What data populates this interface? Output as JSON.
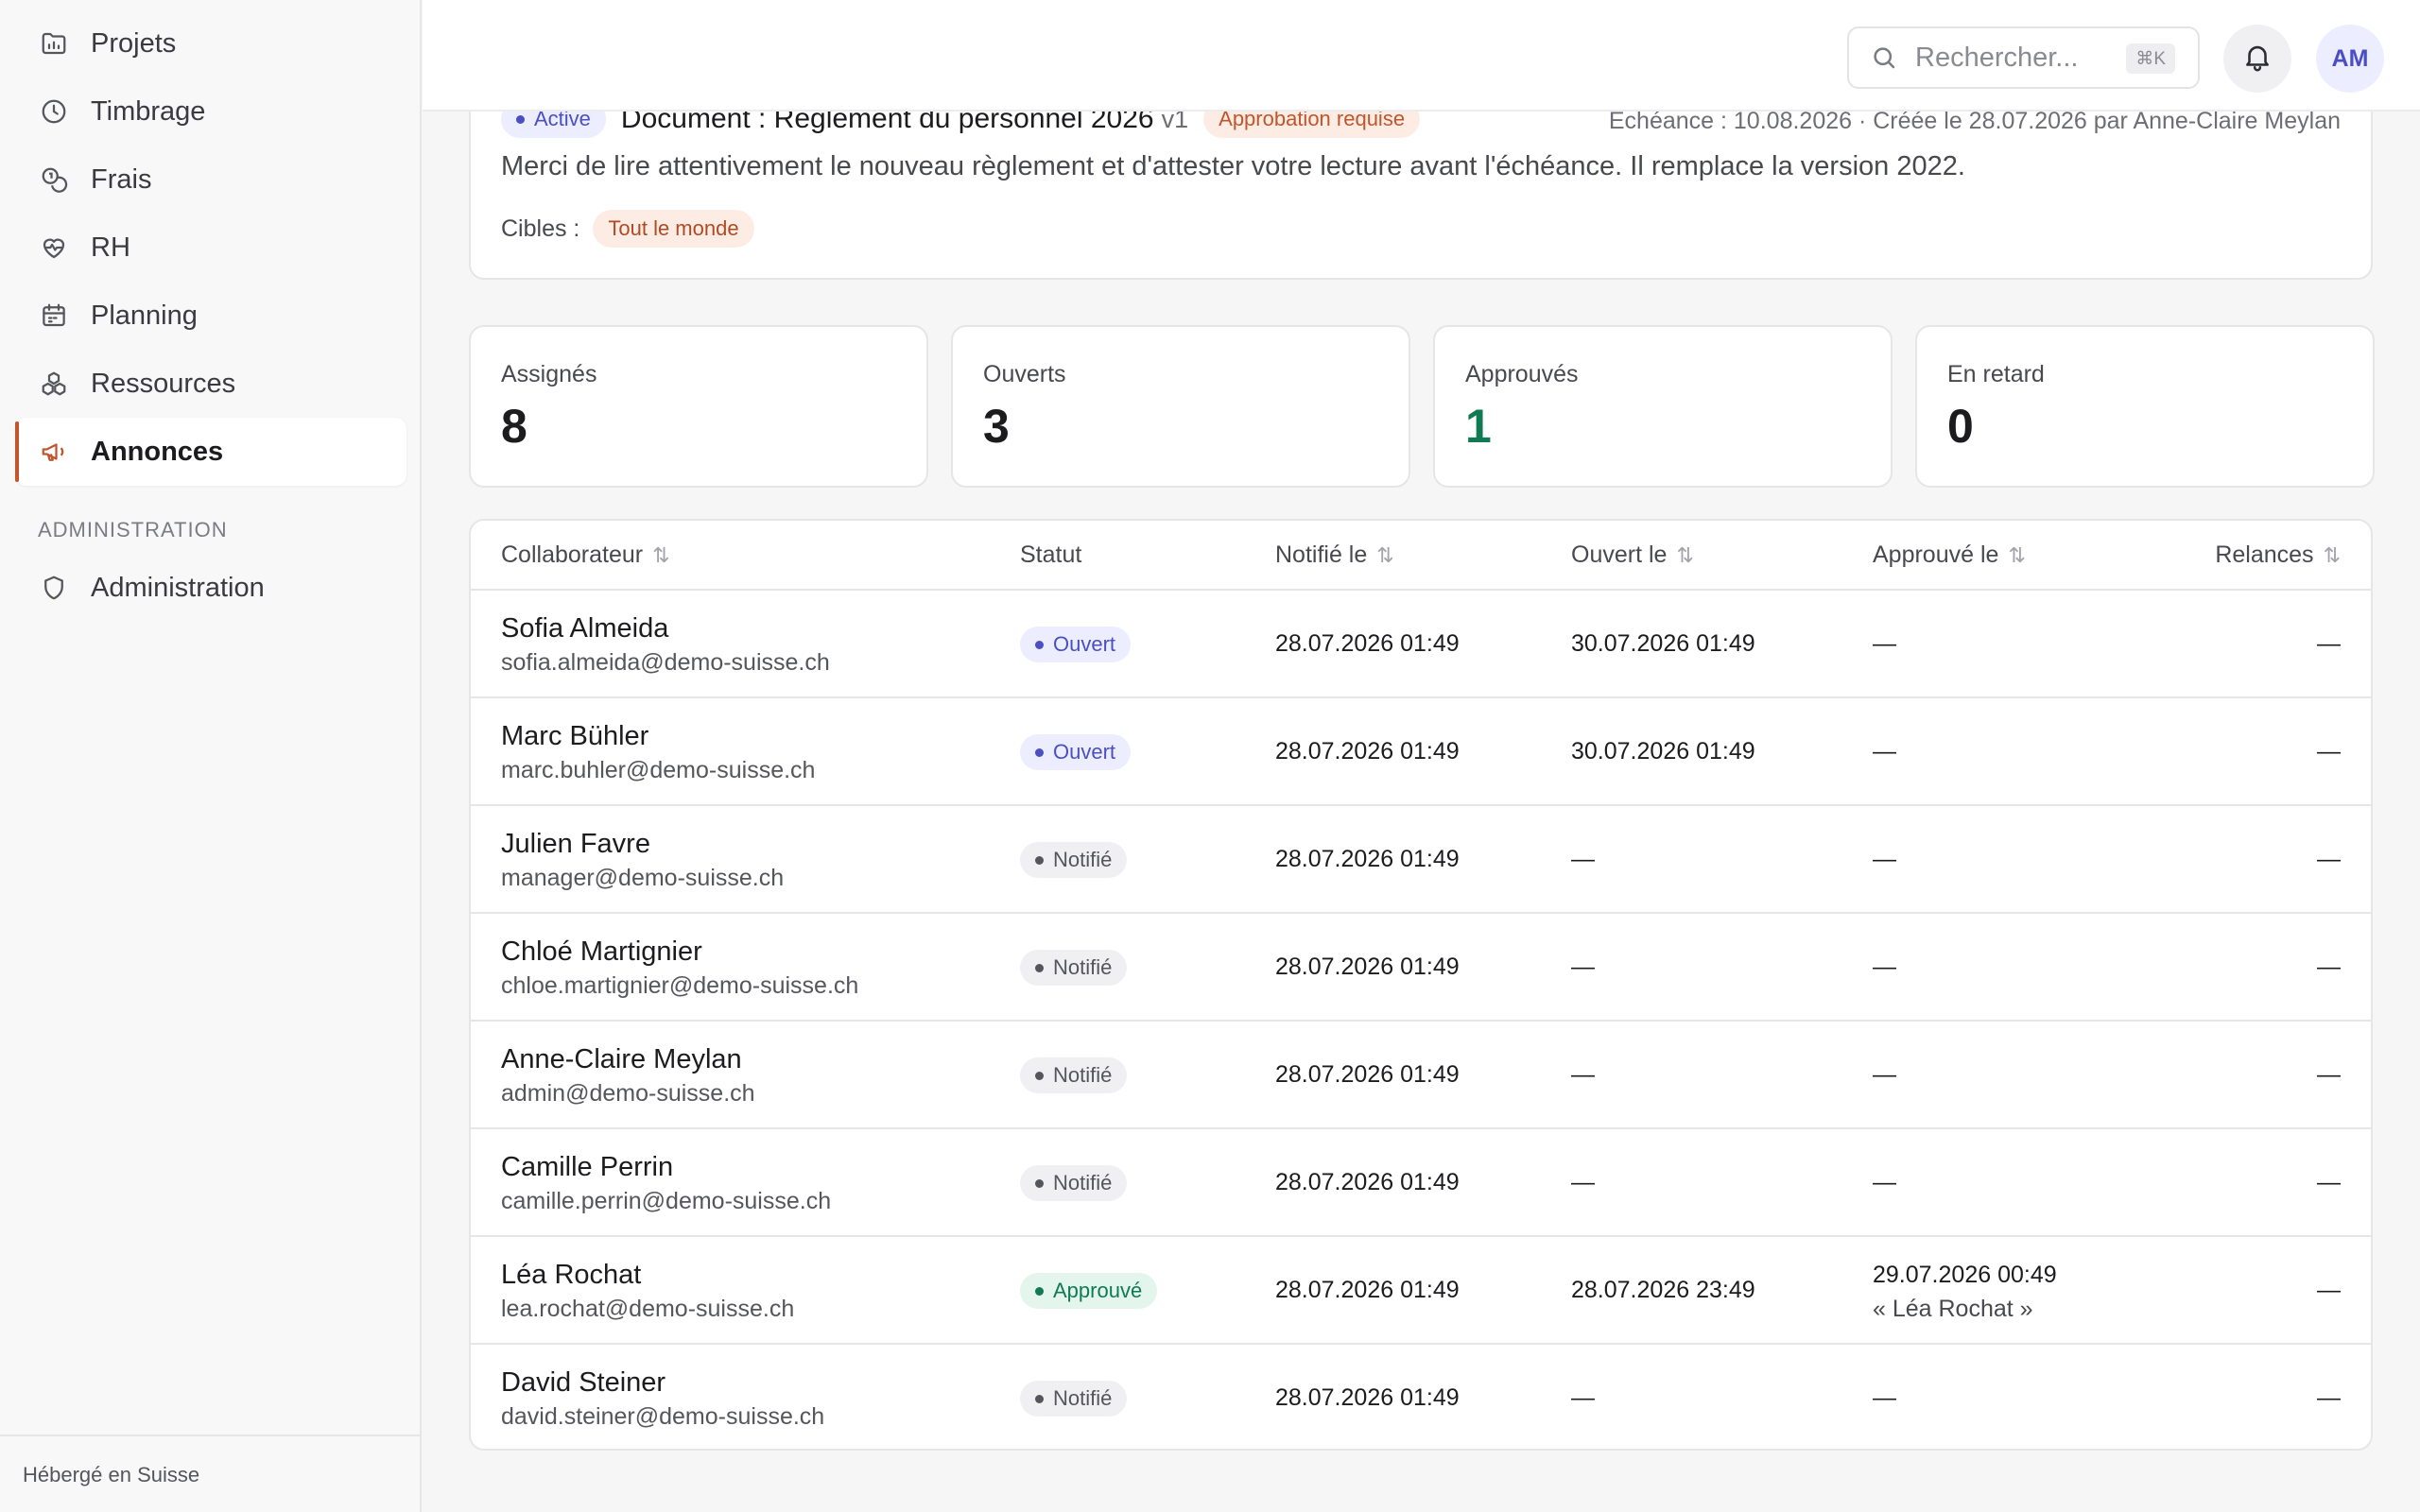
{
  "sidebar": {
    "items": [
      {
        "label": "Projets",
        "icon": "folder-chart-icon"
      },
      {
        "label": "Timbrage",
        "icon": "clock-icon"
      },
      {
        "label": "Frais",
        "icon": "coins-icon"
      },
      {
        "label": "RH",
        "icon": "heart-pulse-icon"
      },
      {
        "label": "Planning",
        "icon": "calendar-icon"
      },
      {
        "label": "Ressources",
        "icon": "boxes-icon"
      },
      {
        "label": "Annonces",
        "icon": "megaphone-icon",
        "active": true
      }
    ],
    "section_label": "ADMINISTRATION",
    "admin_item": {
      "label": "Administration",
      "icon": "shield-icon"
    },
    "footer": "Hébergé en Suisse"
  },
  "topbar": {
    "search_placeholder": "Rechercher...",
    "search_shortcut": "⌘K",
    "avatar_initials": "AM"
  },
  "detail": {
    "status_badge": "Active",
    "title": "Document : Règlement du personnel 2026",
    "version": "v1",
    "approval_badge": "Approbation requise",
    "meta": "Échéance : 10.08.2026 · Créée le 28.07.2026 par Anne-Claire Meylan",
    "description": "Merci de lire attentivement le nouveau règlement et d'attester votre lecture avant l'échéance. Il remplace la version 2022.",
    "targets_label": "Cibles :",
    "target": "Tout le monde"
  },
  "stats": [
    {
      "label": "Assignés",
      "value": "8"
    },
    {
      "label": "Ouverts",
      "value": "3"
    },
    {
      "label": "Approuvés",
      "value": "1",
      "color": "#0f7a54"
    },
    {
      "label": "En retard",
      "value": "0"
    }
  ],
  "table": {
    "headers": {
      "collaborateur": "Collaborateur",
      "statut": "Statut",
      "notifie": "Notifié le",
      "ouvert": "Ouvert le",
      "approuve": "Approuvé le",
      "relances": "Relances"
    },
    "rows": [
      {
        "name": "Sofia Almeida",
        "email": "sofia.almeida@demo-suisse.ch",
        "status": "Ouvert",
        "notified": "28.07.2026 01:49",
        "opened": "30.07.2026 01:49",
        "approved": "—",
        "approved_by": "",
        "relances": "—"
      },
      {
        "name": "Marc Bühler",
        "email": "marc.buhler@demo-suisse.ch",
        "status": "Ouvert",
        "notified": "28.07.2026 01:49",
        "opened": "30.07.2026 01:49",
        "approved": "—",
        "approved_by": "",
        "relances": "—"
      },
      {
        "name": "Julien Favre",
        "email": "manager@demo-suisse.ch",
        "status": "Notifié",
        "notified": "28.07.2026 01:49",
        "opened": "—",
        "approved": "—",
        "approved_by": "",
        "relances": "—"
      },
      {
        "name": "Chloé Martignier",
        "email": "chloe.martignier@demo-suisse.ch",
        "status": "Notifié",
        "notified": "28.07.2026 01:49",
        "opened": "—",
        "approved": "—",
        "approved_by": "",
        "relances": "—"
      },
      {
        "name": "Anne-Claire Meylan",
        "email": "admin@demo-suisse.ch",
        "status": "Notifié",
        "notified": "28.07.2026 01:49",
        "opened": "—",
        "approved": "—",
        "approved_by": "",
        "relances": "—"
      },
      {
        "name": "Camille Perrin",
        "email": "camille.perrin@demo-suisse.ch",
        "status": "Notifié",
        "notified": "28.07.2026 01:49",
        "opened": "—",
        "approved": "—",
        "approved_by": "",
        "relances": "—"
      },
      {
        "name": "Léa Rochat",
        "email": "lea.rochat@demo-suisse.ch",
        "status": "Approuvé",
        "notified": "28.07.2026 01:49",
        "opened": "28.07.2026 23:49",
        "approved": "29.07.2026 00:49",
        "approved_by": "« Léa Rochat »",
        "relances": "—"
      },
      {
        "name": "David Steiner",
        "email": "david.steiner@demo-suisse.ch",
        "status": "Notifié",
        "notified": "28.07.2026 01:49",
        "opened": "—",
        "approved": "—",
        "approved_by": "",
        "relances": "—"
      }
    ]
  },
  "colors": {
    "accent": "#c2552c",
    "indigo": "#4a4fc4",
    "green": "#0f7a54"
  }
}
